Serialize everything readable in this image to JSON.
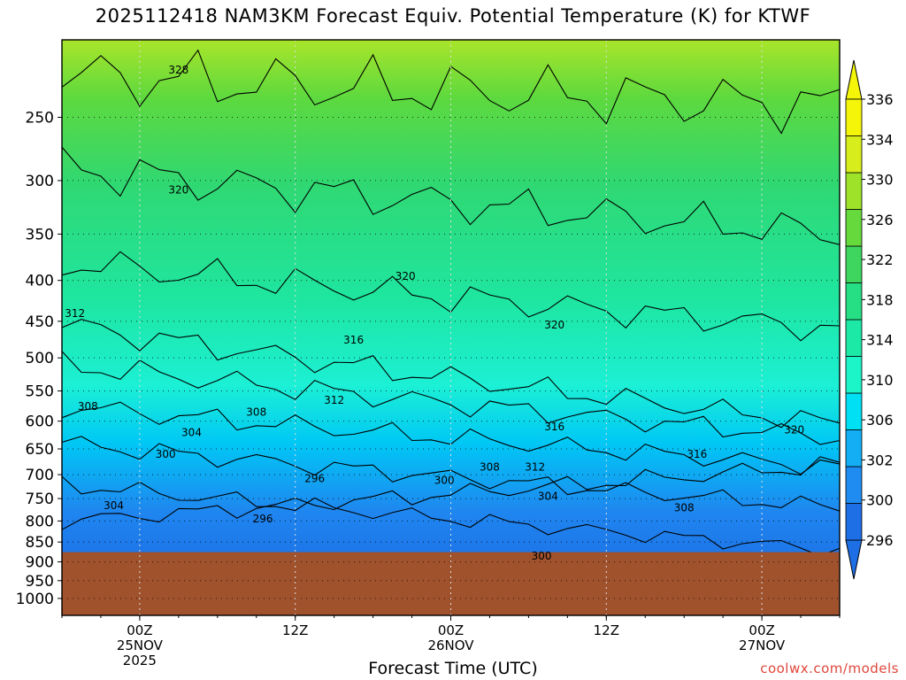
{
  "chart_data": {
    "type": "heatmap",
    "title": "2025112418 NAM3KM Forecast Equiv. Potential Temperature (K) for KTWF",
    "xlabel": "Forecast Time (UTC)",
    "ylabel": "",
    "y_axis": {
      "scale": "log",
      "ticks": [
        250,
        300,
        350,
        400,
        450,
        500,
        550,
        600,
        650,
        700,
        750,
        800,
        850,
        900,
        950,
        1000
      ],
      "range": [
        200,
        1050
      ]
    },
    "x_axis": {
      "ticks": [
        {
          "line1": "00Z",
          "line2": "25NOV",
          "line3": "2025",
          "hour": 0
        },
        {
          "line1": "12Z",
          "line2": "",
          "line3": "",
          "hour": 12
        },
        {
          "line1": "00Z",
          "line2": "26NOV",
          "line3": "",
          "hour": 24
        },
        {
          "line1": "12Z",
          "line2": "",
          "line3": "",
          "hour": 36
        },
        {
          "line1": "00Z",
          "line2": "27NOV",
          "line3": "",
          "hour": 48
        }
      ],
      "range": [
        -6,
        54
      ]
    },
    "grid": true,
    "colorbar": {
      "labels": [
        296,
        300,
        302,
        306,
        310,
        314,
        318,
        322,
        326,
        330,
        334,
        336
      ],
      "colors": [
        "#1e6ee6",
        "#1f8cf2",
        "#14aef5",
        "#00e0f5",
        "#1cf5c8",
        "#1de9a6",
        "#26de83",
        "#3ed65f",
        "#66d93c",
        "#9ee22a",
        "#d7ee1c",
        "#f5f50a"
      ]
    },
    "ground": {
      "pressure_top": 875,
      "color": "#a0522d"
    },
    "contour_levels": [
      296,
      300,
      304,
      308,
      312,
      316,
      320,
      324,
      328
    ],
    "contour_labels": [
      {
        "text": "328",
        "hour": 3,
        "p": 218
      },
      {
        "text": "320",
        "hour": 3,
        "p": 308
      },
      {
        "text": "312",
        "hour": -5,
        "p": 440
      },
      {
        "text": "320",
        "hour": 20.5,
        "p": 395
      },
      {
        "text": "316",
        "hour": 16.5,
        "p": 475
      },
      {
        "text": "320",
        "hour": 32,
        "p": 455
      },
      {
        "text": "312",
        "hour": 15,
        "p": 565
      },
      {
        "text": "308",
        "hour": 9,
        "p": 585
      },
      {
        "text": "308",
        "hour": -4,
        "p": 575
      },
      {
        "text": "304",
        "hour": 4,
        "p": 620
      },
      {
        "text": "300",
        "hour": 2,
        "p": 660
      },
      {
        "text": "316",
        "hour": 32,
        "p": 610
      },
      {
        "text": "320",
        "hour": 50.5,
        "p": 615
      },
      {
        "text": "316",
        "hour": 43,
        "p": 660
      },
      {
        "text": "308",
        "hour": 27,
        "p": 685
      },
      {
        "text": "312",
        "hour": 30.5,
        "p": 685
      },
      {
        "text": "296",
        "hour": 13.5,
        "p": 708
      },
      {
        "text": "300",
        "hour": 23.5,
        "p": 712
      },
      {
        "text": "304",
        "hour": 31.5,
        "p": 745
      },
      {
        "text": "308",
        "hour": 42,
        "p": 770
      },
      {
        "text": "304",
        "hour": -2,
        "p": 765
      },
      {
        "text": "296",
        "hour": 9.5,
        "p": 795
      },
      {
        "text": "300",
        "hour": 31,
        "p": 885
      }
    ]
  },
  "credit": "coolwx.com/models"
}
